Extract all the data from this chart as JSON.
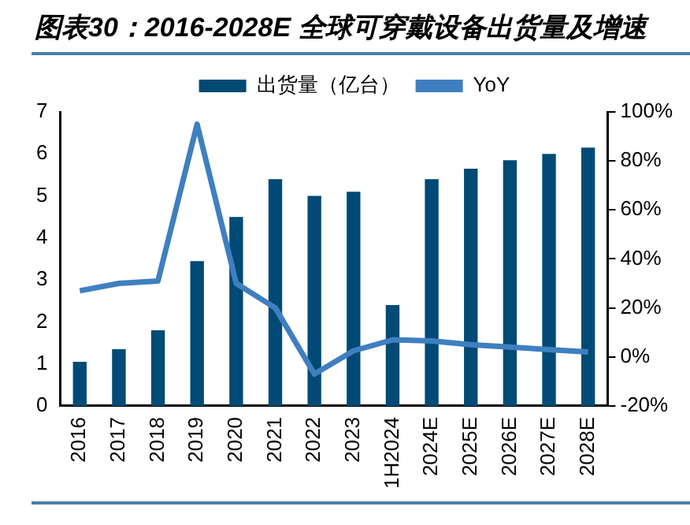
{
  "chart_data": {
    "type": "bar",
    "title": "图表30：2016-2028E 全球可穿戴设备出货量及增速",
    "categories": [
      "2016",
      "2017",
      "2018",
      "2019",
      "2020",
      "2021",
      "2022",
      "2023",
      "1H2024",
      "2024E",
      "2025E",
      "2026E",
      "2027E",
      "2028E"
    ],
    "series": [
      {
        "name": "出货量（亿台）",
        "color": "#004a75",
        "values": [
          1.05,
          1.35,
          1.8,
          3.45,
          4.5,
          5.4,
          5.0,
          5.1,
          2.4,
          5.4,
          5.65,
          5.85,
          6.0,
          6.15
        ]
      },
      {
        "name": "YoY",
        "type": "line",
        "axis": "y2",
        "color": "#3f7fc0",
        "values": [
          27,
          30,
          31,
          95,
          30,
          20,
          -7,
          2.5,
          7,
          6.5,
          5,
          4,
          3,
          2
        ]
      }
    ],
    "ylim": [
      0,
      7
    ],
    "yticks": [
      0,
      1,
      2,
      3,
      4,
      5,
      6,
      7
    ],
    "y2lim": [
      -20,
      100
    ],
    "y2ticks": [
      {
        "value": -20,
        "label": "-20%"
      },
      {
        "value": 0,
        "label": "0%"
      },
      {
        "value": 20,
        "label": "20%"
      },
      {
        "value": 40,
        "label": "40%"
      },
      {
        "value": 60,
        "label": "60%"
      },
      {
        "value": 80,
        "label": "80%"
      },
      {
        "value": 100,
        "label": "100%"
      }
    ],
    "grid": false,
    "legend": "top",
    "marker": "none"
  }
}
